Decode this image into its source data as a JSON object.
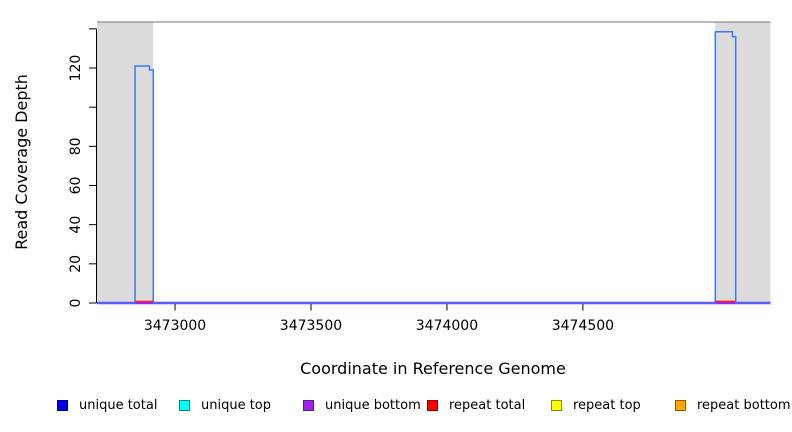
{
  "chart_data": {
    "type": "line",
    "title": "",
    "xlabel": "Coordinate in Reference Genome",
    "ylabel": "Read Coverage Depth",
    "xlim": [
      3472713,
      3475190
    ],
    "ylim": [
      0,
      143.5
    ],
    "x_ticks": [
      3473000,
      3473500,
      3474000,
      3474500
    ],
    "x_tick_labels": [
      "3473000",
      "3473500",
      "3474000",
      "3474500"
    ],
    "y_ticks": [
      0,
      20,
      40,
      60,
      80,
      100,
      120,
      140
    ],
    "y_tick_labels": [
      "0",
      "20",
      "40",
      "60",
      "80",
      "",
      "120",
      ""
    ],
    "grid": false,
    "legend_position": "bottom",
    "frame_top_color": "#8e8e8e",
    "shaded_regions": [
      {
        "name": "left-flank",
        "x0": 3472713,
        "x1": 3472920,
        "color": "#dcdcdc"
      },
      {
        "name": "right-flank",
        "x0": 3474987,
        "x1": 3475190,
        "color": "#dcdcdc"
      }
    ],
    "series": [
      {
        "name": "unique top",
        "color": "#00ffff",
        "segments": [
          [
            [
              3472713,
              0
            ],
            [
              3475190,
              0
            ]
          ]
        ]
      },
      {
        "name": "repeat top",
        "color": "#ffff00",
        "segments": [
          [
            [
              3472713,
              0
            ],
            [
              3475190,
              0
            ]
          ]
        ]
      },
      {
        "name": "repeat bottom",
        "color": "#ffa500",
        "segments": [
          [
            [
              3472713,
              0
            ],
            [
              3475190,
              0
            ]
          ]
        ]
      },
      {
        "name": "unique bottom",
        "color": "#a020f0",
        "segments": [
          [
            [
              3472713,
              0
            ],
            [
              3475190,
              0
            ]
          ]
        ]
      },
      {
        "name": "unique total",
        "color": "#3a79f4",
        "segments": [
          [
            [
              3472713,
              0
            ],
            [
              3472853,
              0
            ],
            [
              3472853,
              121
            ],
            [
              3472906,
              121
            ],
            [
              3472906,
              119
            ],
            [
              3472920,
              119
            ],
            [
              3472920,
              0
            ],
            [
              3474987,
              0
            ],
            [
              3474987,
              138.5
            ],
            [
              3475050,
              138.5
            ],
            [
              3475050,
              136
            ],
            [
              3475062,
              136
            ],
            [
              3475062,
              0
            ],
            [
              3475190,
              0
            ]
          ]
        ]
      },
      {
        "name": "repeat total",
        "color": "#ff2020",
        "segments": [
          [
            [
              3472853,
              0.8
            ],
            [
              3472920,
              0.8
            ]
          ],
          [
            [
              3474987,
              0.8
            ],
            [
              3475062,
              0.8
            ]
          ]
        ]
      }
    ]
  },
  "legend": {
    "items": [
      {
        "label": "unique total",
        "fill": "#0000ee",
        "border": "#00008b"
      },
      {
        "label": "unique top",
        "fill": "#00ffff",
        "border": "#008b8b"
      },
      {
        "label": "unique bottom",
        "fill": "#a020f0",
        "border": "#551a8b"
      },
      {
        "label": "repeat total",
        "fill": "#ff0000",
        "border": "#8b0000"
      },
      {
        "label": "repeat top",
        "fill": "#ffff00",
        "border": "#8b8b00"
      },
      {
        "label": "repeat bottom",
        "fill": "#ffa500",
        "border": "#8b5a00"
      }
    ]
  }
}
